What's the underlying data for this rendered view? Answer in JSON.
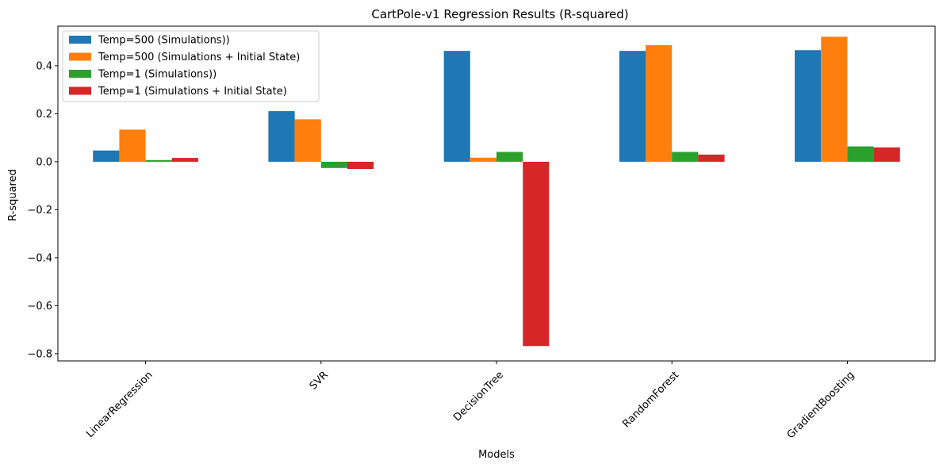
{
  "chart_data": {
    "type": "bar",
    "title": "CartPole-v1 Regression Results (R-squared)",
    "xlabel": "Models",
    "ylabel": "R-squared",
    "categories": [
      "LinearRegression",
      "SVR",
      "DecisionTree",
      "RandomForest",
      "GradientBoosting"
    ],
    "series": [
      {
        "name": "Temp=500 (Simulations))",
        "color": "#1f77b4",
        "values": [
          0.047,
          0.211,
          0.462,
          0.462,
          0.465
        ]
      },
      {
        "name": "Temp=500 (Simulations + Initial State)",
        "color": "#ff7f0e",
        "values": [
          0.134,
          0.177,
          0.017,
          0.486,
          0.521
        ]
      },
      {
        "name": "Temp=1 (Simulations))",
        "color": "#2ca02c",
        "values": [
          0.007,
          -0.026,
          0.041,
          0.041,
          0.064
        ]
      },
      {
        "name": "Temp=1 (Simulations + Initial State)",
        "color": "#d62728",
        "values": [
          0.016,
          -0.03,
          -0.768,
          0.03,
          0.06
        ]
      }
    ],
    "ylim": [
      -0.83,
      0.565
    ],
    "yticks": [
      -0.8,
      -0.6,
      -0.4,
      -0.2,
      0.0,
      0.2,
      0.4
    ],
    "ytick_labels": [
      "−0.8",
      "−0.6",
      "−0.4",
      "−0.2",
      "0.0",
      "0.2",
      "0.4"
    ],
    "grid": false,
    "legend_position": "upper left",
    "xtick_rotation": 45
  }
}
